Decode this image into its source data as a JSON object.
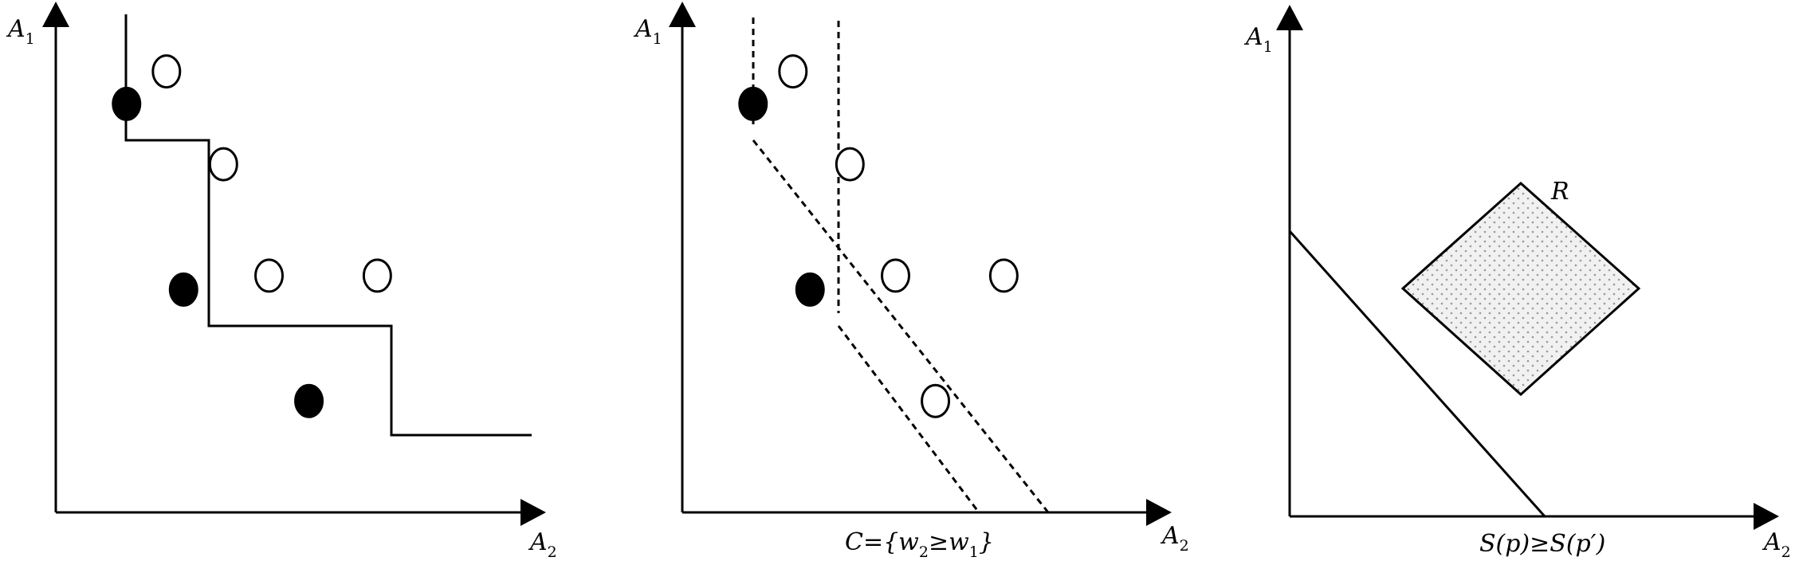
{
  "colors": {
    "ink": "#000000",
    "background": "#ffffff",
    "region_fill": "#f1f1f1",
    "region_dots": "#9a9a9a"
  },
  "panels": [
    {
      "id": "staircase",
      "y_axis_label": "A",
      "y_axis_sub": "1",
      "x_axis_label": "A",
      "x_axis_sub": "2",
      "points": [
        {
          "x": 1.0,
          "y": 5.0,
          "dominated": false
        },
        {
          "x": 2.0,
          "y": 3.0,
          "dominated": false
        },
        {
          "x": 4.2,
          "y": 1.8,
          "dominated": false
        },
        {
          "x": 1.7,
          "y": 5.35,
          "dominated": true
        },
        {
          "x": 2.7,
          "y": 4.35,
          "dominated": true
        },
        {
          "x": 3.5,
          "y": 3.15,
          "dominated": true
        },
        {
          "x": 5.4,
          "y": 3.15,
          "dominated": true
        }
      ]
    },
    {
      "id": "cone",
      "y_axis_label": "A",
      "y_axis_sub": "1",
      "x_axis_label": "A",
      "x_axis_sub": "2",
      "caption_parts": [
        "C={w",
        "2",
        "≥w",
        "1",
        "}"
      ],
      "points": [
        {
          "x": 1.0,
          "y": 5.0,
          "dominated": false
        },
        {
          "x": 2.0,
          "y": 3.0,
          "dominated": false
        },
        {
          "x": 1.7,
          "y": 5.35,
          "dominated": true
        },
        {
          "x": 2.7,
          "y": 4.35,
          "dominated": true
        },
        {
          "x": 3.5,
          "y": 3.15,
          "dominated": true
        },
        {
          "x": 5.4,
          "y": 3.15,
          "dominated": true
        },
        {
          "x": 4.2,
          "y": 1.8,
          "dominated": true
        }
      ]
    },
    {
      "id": "region",
      "y_axis_label": "A",
      "y_axis_sub": "1",
      "x_axis_label": "A",
      "x_axis_sub": "2",
      "region_label": "R",
      "caption_parts": [
        "S(p)≥S(p′)"
      ]
    }
  ]
}
